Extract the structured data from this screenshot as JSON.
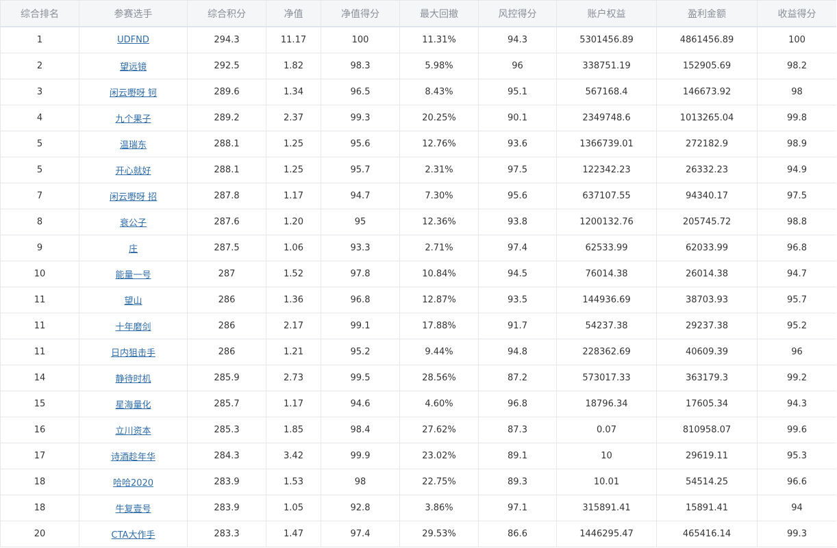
{
  "table": {
    "columns": [
      "综合排名",
      "参赛选手",
      "综合积分",
      "净值",
      "净值得分",
      "最大回撤",
      "风控得分",
      "账户权益",
      "盈利金额",
      "收益得分"
    ],
    "rows": [
      {
        "rank": "1",
        "player": "UDFND",
        "score": "294.3",
        "nav": "11.17",
        "nav_score": "100",
        "max_drawdown": "11.31%",
        "risk_score": "94.3",
        "equity": "5301456.89",
        "profit": "4861456.89",
        "return_score": "100"
      },
      {
        "rank": "2",
        "player": "望远镜",
        "score": "292.5",
        "nav": "1.82",
        "nav_score": "98.3",
        "max_drawdown": "5.98%",
        "risk_score": "96",
        "equity": "338751.19",
        "profit": "152905.69",
        "return_score": "98.2"
      },
      {
        "rank": "3",
        "player": "闲云嘢呀 钶",
        "score": "289.6",
        "nav": "1.34",
        "nav_score": "96.5",
        "max_drawdown": "8.43%",
        "risk_score": "95.1",
        "equity": "567168.4",
        "profit": "146673.92",
        "return_score": "98"
      },
      {
        "rank": "4",
        "player": "九个果子",
        "score": "289.2",
        "nav": "2.37",
        "nav_score": "99.3",
        "max_drawdown": "20.25%",
        "risk_score": "90.1",
        "equity": "2349748.6",
        "profit": "1013265.04",
        "return_score": "99.8"
      },
      {
        "rank": "5",
        "player": "温瑞东",
        "score": "288.1",
        "nav": "1.25",
        "nav_score": "95.6",
        "max_drawdown": "12.76%",
        "risk_score": "93.6",
        "equity": "1366739.01",
        "profit": "272182.9",
        "return_score": "98.9"
      },
      {
        "rank": "5",
        "player": "开心就好",
        "score": "288.1",
        "nav": "1.25",
        "nav_score": "95.7",
        "max_drawdown": "2.31%",
        "risk_score": "97.5",
        "equity": "122342.23",
        "profit": "26332.23",
        "return_score": "94.9"
      },
      {
        "rank": "7",
        "player": "闲云嘢呀 招",
        "score": "287.8",
        "nav": "1.17",
        "nav_score": "94.7",
        "max_drawdown": "7.30%",
        "risk_score": "95.6",
        "equity": "637107.55",
        "profit": "94340.17",
        "return_score": "97.5"
      },
      {
        "rank": "8",
        "player": "衰公子",
        "score": "287.6",
        "nav": "1.20",
        "nav_score": "95",
        "max_drawdown": "12.36%",
        "risk_score": "93.8",
        "equity": "1200132.76",
        "profit": "205745.72",
        "return_score": "98.8"
      },
      {
        "rank": "9",
        "player": "庄",
        "score": "287.5",
        "nav": "1.06",
        "nav_score": "93.3",
        "max_drawdown": "2.71%",
        "risk_score": "97.4",
        "equity": "62533.99",
        "profit": "62033.99",
        "return_score": "96.8"
      },
      {
        "rank": "10",
        "player": "能量一号",
        "score": "287",
        "nav": "1.52",
        "nav_score": "97.8",
        "max_drawdown": "10.84%",
        "risk_score": "94.5",
        "equity": "76014.38",
        "profit": "26014.38",
        "return_score": "94.7"
      },
      {
        "rank": "11",
        "player": "望山",
        "score": "286",
        "nav": "1.36",
        "nav_score": "96.8",
        "max_drawdown": "12.87%",
        "risk_score": "93.5",
        "equity": "144936.69",
        "profit": "38703.93",
        "return_score": "95.7"
      },
      {
        "rank": "11",
        "player": "十年磨剑",
        "score": "286",
        "nav": "2.17",
        "nav_score": "99.1",
        "max_drawdown": "17.88%",
        "risk_score": "91.7",
        "equity": "54237.38",
        "profit": "29237.38",
        "return_score": "95.2"
      },
      {
        "rank": "11",
        "player": "日内狙击手",
        "score": "286",
        "nav": "1.21",
        "nav_score": "95.2",
        "max_drawdown": "9.44%",
        "risk_score": "94.8",
        "equity": "228362.69",
        "profit": "40609.39",
        "return_score": "96"
      },
      {
        "rank": "14",
        "player": "静待时机",
        "score": "285.9",
        "nav": "2.73",
        "nav_score": "99.5",
        "max_drawdown": "28.56%",
        "risk_score": "87.2",
        "equity": "573017.33",
        "profit": "363179.3",
        "return_score": "99.2"
      },
      {
        "rank": "15",
        "player": "星海量化",
        "score": "285.7",
        "nav": "1.17",
        "nav_score": "94.6",
        "max_drawdown": "4.60%",
        "risk_score": "96.8",
        "equity": "18796.34",
        "profit": "17605.34",
        "return_score": "94.3"
      },
      {
        "rank": "16",
        "player": "立川资本",
        "score": "285.3",
        "nav": "1.85",
        "nav_score": "98.4",
        "max_drawdown": "27.62%",
        "risk_score": "87.3",
        "equity": "0.07",
        "profit": "810958.07",
        "return_score": "99.6"
      },
      {
        "rank": "17",
        "player": "诗酒趁年华",
        "score": "284.3",
        "nav": "3.42",
        "nav_score": "99.9",
        "max_drawdown": "23.02%",
        "risk_score": "89.1",
        "equity": "10",
        "profit": "29619.11",
        "return_score": "95.3"
      },
      {
        "rank": "18",
        "player": "哈哈2020",
        "score": "283.9",
        "nav": "1.53",
        "nav_score": "98",
        "max_drawdown": "22.75%",
        "risk_score": "89.3",
        "equity": "10.01",
        "profit": "54514.25",
        "return_score": "96.6"
      },
      {
        "rank": "18",
        "player": "牛复壹号",
        "score": "283.9",
        "nav": "1.05",
        "nav_score": "92.8",
        "max_drawdown": "3.86%",
        "risk_score": "97.1",
        "equity": "315891.41",
        "profit": "15891.41",
        "return_score": "94"
      },
      {
        "rank": "20",
        "player": "CTA大作手",
        "score": "283.3",
        "nav": "1.47",
        "nav_score": "97.4",
        "max_drawdown": "29.53%",
        "risk_score": "86.6",
        "equity": "1446295.47",
        "profit": "465416.14",
        "return_score": "99.3"
      }
    ]
  }
}
